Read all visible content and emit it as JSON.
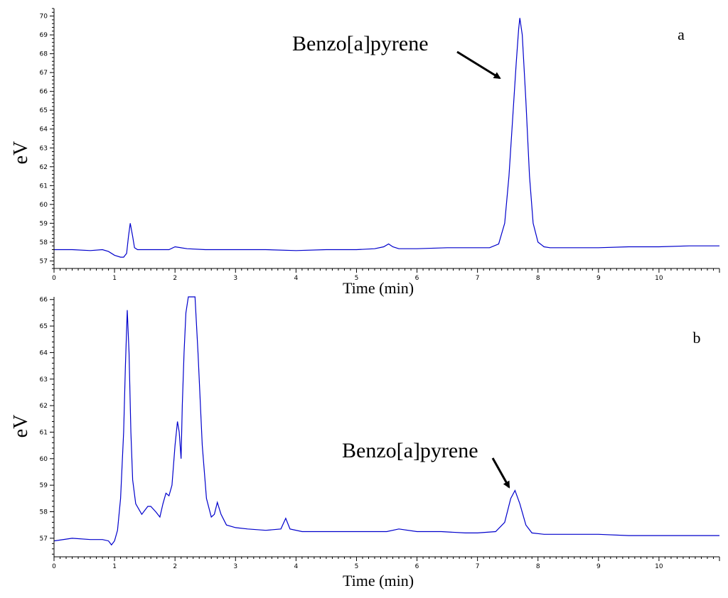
{
  "chart_data": [
    {
      "type": "line",
      "panel_label": "a",
      "xlabel": "Time (min)",
      "ylabel": "eV",
      "xlim": [
        0,
        11
      ],
      "ylim": [
        56.6,
        70.4
      ],
      "x_ticks": [
        0,
        1,
        2,
        3,
        4,
        5,
        6,
        7,
        8,
        9,
        10
      ],
      "y_ticks": [
        57,
        58,
        59,
        60,
        61,
        62,
        63,
        64,
        65,
        66,
        67,
        68,
        69,
        70
      ],
      "color": "#0000cc",
      "annotation": {
        "text": "Benzo[a]pyrene",
        "x": 7.7,
        "y": 69.9
      },
      "series": [
        {
          "x": [
            0,
            0.3,
            0.6,
            0.8,
            0.9,
            1.0,
            1.1,
            1.15,
            1.2,
            1.23,
            1.26,
            1.3,
            1.33,
            1.38,
            1.5,
            1.7,
            1.9,
            2.0,
            2.2,
            2.5,
            3.0,
            3.5,
            4.0,
            4.5,
            5.0,
            5.3,
            5.45,
            5.53,
            5.6,
            5.7,
            6.0,
            6.5,
            7.0,
            7.2,
            7.35,
            7.45,
            7.52,
            7.58,
            7.64,
            7.68,
            7.7,
            7.74,
            7.8,
            7.86,
            7.92,
            8.0,
            8.1,
            8.2,
            8.5,
            9.0,
            9.5,
            10.0,
            10.5,
            11.0
          ],
          "y": [
            57.6,
            57.6,
            57.55,
            57.6,
            57.5,
            57.3,
            57.2,
            57.2,
            57.4,
            58.3,
            59.0,
            58.3,
            57.7,
            57.6,
            57.6,
            57.6,
            57.6,
            57.75,
            57.65,
            57.6,
            57.6,
            57.6,
            57.55,
            57.6,
            57.6,
            57.65,
            57.75,
            57.9,
            57.75,
            57.65,
            57.65,
            57.7,
            57.7,
            57.7,
            57.9,
            59.0,
            61.5,
            64.5,
            67.5,
            69.3,
            69.9,
            69.0,
            65.5,
            61.5,
            59.0,
            58.0,
            57.75,
            57.7,
            57.7,
            57.7,
            57.75,
            57.75,
            57.8,
            57.8
          ]
        }
      ]
    },
    {
      "type": "line",
      "panel_label": "b",
      "xlabel": "Time (min)",
      "ylabel": "eV",
      "xlim": [
        0,
        11
      ],
      "ylim": [
        56.3,
        66.1
      ],
      "x_ticks": [
        0,
        1,
        2,
        3,
        4,
        5,
        6,
        7,
        8,
        9,
        10
      ],
      "y_ticks": [
        57,
        58,
        59,
        60,
        61,
        62,
        63,
        64,
        65,
        66
      ],
      "color": "#0000cc",
      "annotation": {
        "text": "Benzo[a]pyrene",
        "x": 7.62,
        "y": 58.8
      },
      "series": [
        {
          "x": [
            0,
            0.3,
            0.6,
            0.8,
            0.9,
            0.95,
            1.0,
            1.05,
            1.1,
            1.15,
            1.18,
            1.21,
            1.24,
            1.27,
            1.3,
            1.35,
            1.45,
            1.55,
            1.6,
            1.68,
            1.75,
            1.8,
            1.85,
            1.9,
            1.95,
            2.0,
            2.04,
            2.07,
            2.1,
            2.12,
            2.15,
            2.18,
            2.22,
            2.28,
            2.33,
            2.38,
            2.45,
            2.52,
            2.6,
            2.65,
            2.7,
            2.76,
            2.85,
            3.0,
            3.2,
            3.5,
            3.75,
            3.83,
            3.9,
            4.1,
            4.5,
            5.0,
            5.5,
            5.7,
            6.0,
            6.4,
            6.8,
            7.0,
            7.3,
            7.45,
            7.55,
            7.62,
            7.7,
            7.8,
            7.9,
            8.1,
            8.5,
            9.0,
            9.5,
            10.0,
            10.5,
            11.0
          ],
          "y": [
            56.9,
            57.0,
            56.95,
            56.95,
            56.9,
            56.75,
            56.9,
            57.3,
            58.5,
            61.0,
            63.5,
            65.6,
            64.0,
            61.0,
            59.2,
            58.3,
            57.9,
            58.2,
            58.2,
            58.0,
            57.8,
            58.3,
            58.7,
            58.6,
            59.0,
            60.5,
            61.4,
            61.0,
            60.0,
            62.0,
            64.0,
            65.5,
            66.1,
            66.1,
            66.1,
            64.0,
            60.5,
            58.5,
            57.8,
            57.9,
            58.35,
            57.9,
            57.5,
            57.4,
            57.35,
            57.3,
            57.35,
            57.75,
            57.35,
            57.25,
            57.25,
            57.25,
            57.25,
            57.35,
            57.25,
            57.25,
            57.2,
            57.2,
            57.25,
            57.6,
            58.5,
            58.8,
            58.3,
            57.5,
            57.2,
            57.15,
            57.15,
            57.15,
            57.1,
            57.1,
            57.1,
            57.1
          ]
        }
      ]
    }
  ]
}
